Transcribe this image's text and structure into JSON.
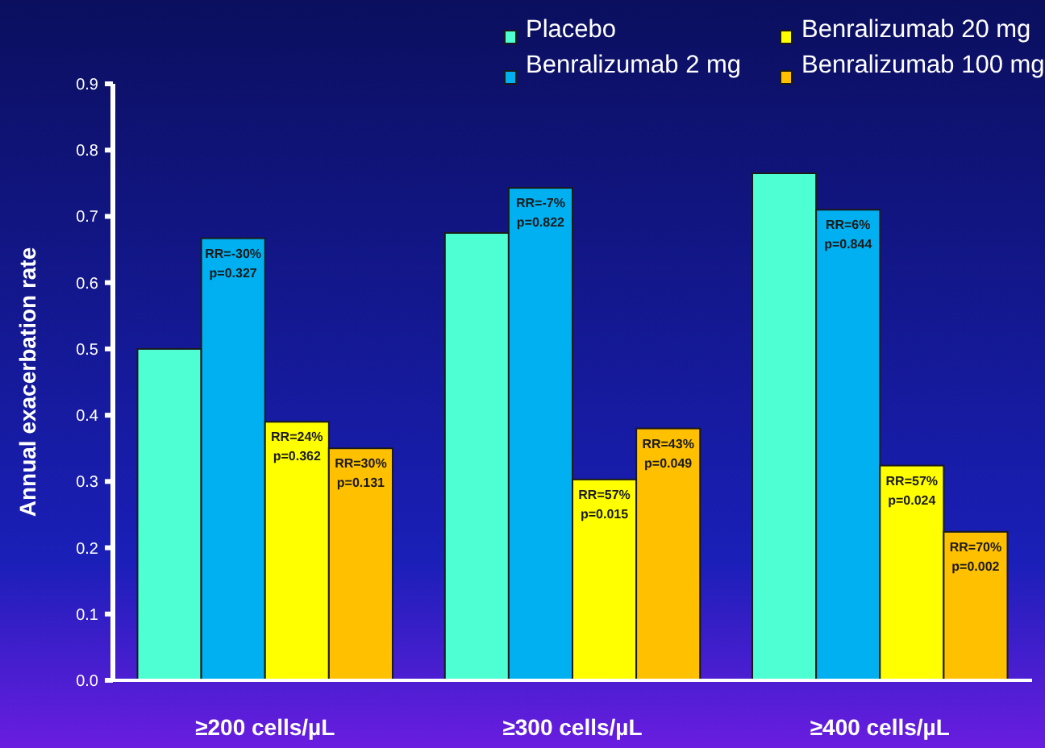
{
  "chart_data": {
    "type": "bar",
    "ylabel": "Annual exacerbation rate",
    "categories": [
      "≥200 cells/µL",
      "≥300 cells/µL",
      "≥400 cells/µL"
    ],
    "series": [
      {
        "name": "Placebo",
        "color": "#4dffd2",
        "values": [
          0.5,
          0.675,
          0.765
        ]
      },
      {
        "name": "Benralizumab 2 mg",
        "color": "#00b0f0",
        "values": [
          0.667,
          0.743,
          0.71
        ]
      },
      {
        "name": "Benralizumab 20 mg",
        "color": "#ffff00",
        "values": [
          0.39,
          0.303,
          0.324
        ]
      },
      {
        "name": "Benralizumab 100 mg",
        "color": "#ffc000",
        "values": [
          0.35,
          0.38,
          0.224
        ]
      }
    ],
    "ylim": [
      0,
      0.9
    ],
    "yticks": [
      {
        "value": 0,
        "label": "0.0"
      },
      {
        "value": 0.1,
        "label": "0.1"
      },
      {
        "value": 0.2,
        "label": "0.2"
      },
      {
        "value": 0.3,
        "label": "0.3"
      },
      {
        "value": 0.4,
        "label": "0.4"
      },
      {
        "value": 0.5,
        "label": "0.5"
      },
      {
        "value": 0.6,
        "label": "0.6"
      },
      {
        "value": 0.7,
        "label": "0.7"
      },
      {
        "value": 0.8,
        "label": "0.8"
      },
      {
        "value": 0.9,
        "label": "0.9"
      }
    ],
    "annotations": [
      "RR=-30% p=0.327",
      "RR=24% p=0.362",
      "RR=30% p=0.131",
      "RR=-7% p=0.822",
      "RR=57% p=0.015",
      "RR=43% p=0.049",
      "RR=6% p=0.844",
      "RR=57% p=0.024",
      "RR=70% p=0.002"
    ],
    "legend": "top right",
    "grid": false
  }
}
